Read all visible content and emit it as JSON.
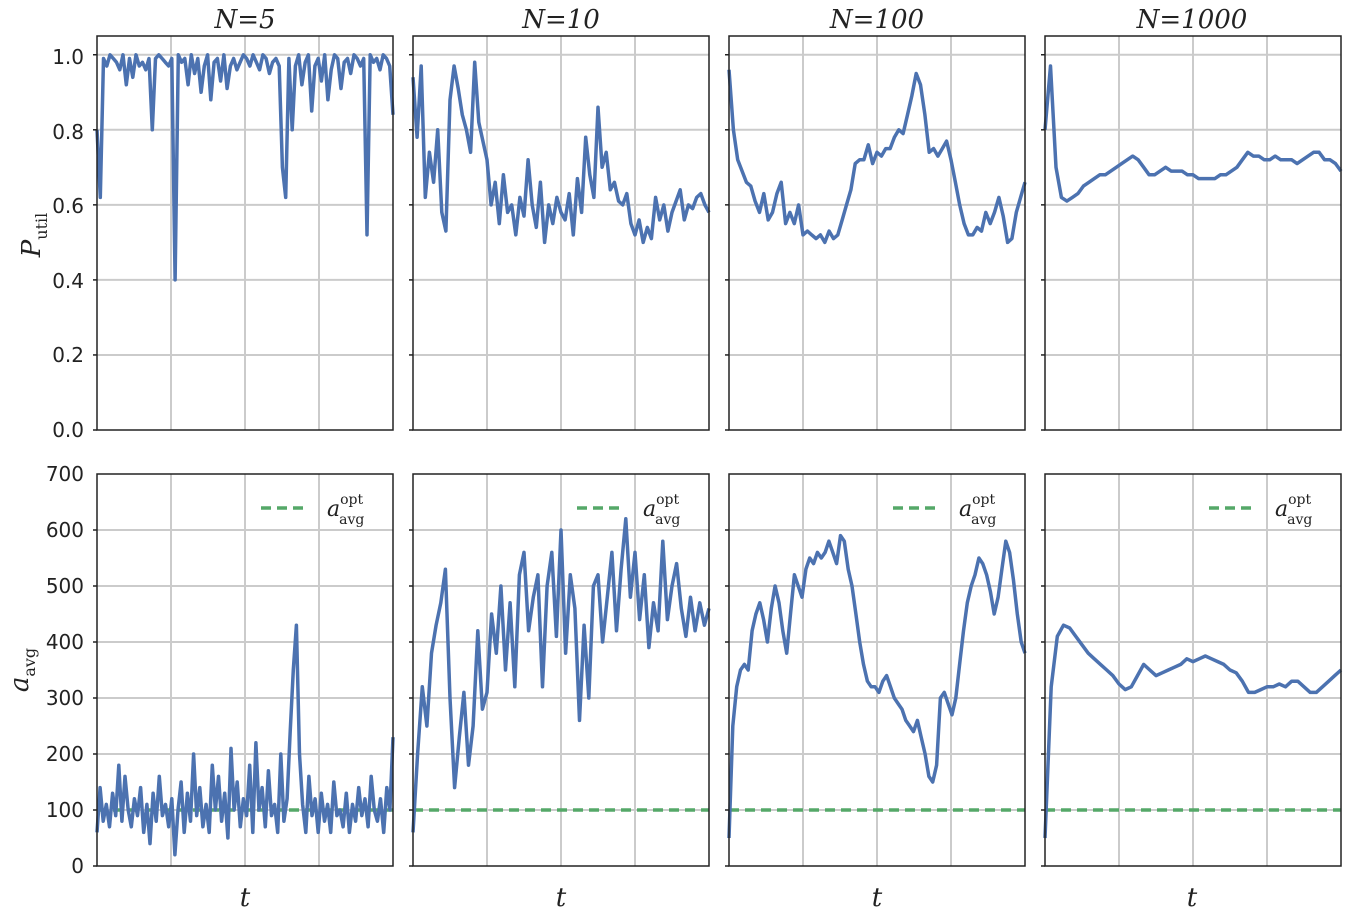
{
  "figure": {
    "colors": {
      "series": "#4c72b0",
      "reference": "#55a868",
      "grid": "#cbcbcb",
      "frame": "#222222"
    }
  },
  "chart_data": [
    {
      "type": "line",
      "panel": "top",
      "title": "N=5",
      "ylabel": "P_util",
      "xlabel": "",
      "ylim": [
        0,
        1.05
      ],
      "yticks": [
        "0.0",
        "0.2",
        "0.4",
        "0.6",
        "0.8",
        "1.0"
      ],
      "grid": true,
      "series": [
        {
          "values": [
            0.8,
            0.62,
            0.99,
            0.97,
            1.0,
            0.99,
            0.98,
            0.96,
            1.0,
            0.92,
            0.99,
            0.94,
            1.0,
            0.97,
            0.98,
            0.96,
            0.99,
            0.8,
            0.99,
            1.0,
            0.99,
            0.98,
            0.97,
            0.99,
            0.4,
            1.0,
            0.98,
            0.99,
            0.92,
            1.0,
            0.95,
            0.99,
            0.9,
            0.97,
            1.0,
            0.88,
            0.98,
            0.99,
            0.93,
            1.0,
            0.91,
            0.97,
            0.99,
            0.96,
            0.98,
            1.0,
            0.99,
            0.97,
            1.0,
            0.98,
            0.96,
            1.0,
            0.99,
            0.95,
            0.98,
            0.99,
            0.97,
            0.7,
            0.62,
            0.99,
            0.8,
            0.97,
            1.0,
            0.92,
            0.98,
            1.0,
            0.85,
            0.97,
            0.99,
            0.93,
            1.0,
            0.88,
            0.96,
            1.0,
            0.99,
            0.91,
            0.98,
            0.99,
            0.95,
            1.0,
            0.99,
            0.97,
            0.99,
            0.52,
            1.0,
            0.98,
            0.99,
            0.96,
            1.0,
            0.99,
            0.97,
            0.84
          ]
        }
      ]
    },
    {
      "type": "line",
      "panel": "top",
      "title": "N=10",
      "ylim": [
        0,
        1.05
      ],
      "grid": true,
      "series": [
        {
          "values": [
            0.94,
            0.78,
            0.97,
            0.62,
            0.74,
            0.66,
            0.8,
            0.58,
            0.53,
            0.88,
            0.97,
            0.91,
            0.84,
            0.8,
            0.74,
            0.98,
            0.82,
            0.77,
            0.72,
            0.6,
            0.66,
            0.55,
            0.68,
            0.58,
            0.6,
            0.52,
            0.62,
            0.57,
            0.72,
            0.6,
            0.54,
            0.66,
            0.5,
            0.6,
            0.55,
            0.62,
            0.58,
            0.56,
            0.63,
            0.52,
            0.67,
            0.58,
            0.78,
            0.68,
            0.62,
            0.86,
            0.7,
            0.74,
            0.64,
            0.66,
            0.61,
            0.6,
            0.63,
            0.55,
            0.52,
            0.56,
            0.5,
            0.54,
            0.51,
            0.62,
            0.56,
            0.6,
            0.53,
            0.58,
            0.61,
            0.64,
            0.56,
            0.6,
            0.59,
            0.62,
            0.63,
            0.6,
            0.58
          ]
        }
      ]
    },
    {
      "type": "line",
      "panel": "top",
      "title": "N=100",
      "ylim": [
        0,
        1.05
      ],
      "grid": true,
      "series": [
        {
          "values": [
            0.96,
            0.8,
            0.72,
            0.69,
            0.66,
            0.65,
            0.61,
            0.58,
            0.63,
            0.56,
            0.58,
            0.63,
            0.66,
            0.55,
            0.58,
            0.55,
            0.6,
            0.52,
            0.53,
            0.52,
            0.51,
            0.52,
            0.5,
            0.53,
            0.51,
            0.52,
            0.56,
            0.6,
            0.64,
            0.71,
            0.72,
            0.72,
            0.76,
            0.71,
            0.74,
            0.73,
            0.75,
            0.75,
            0.78,
            0.8,
            0.79,
            0.84,
            0.89,
            0.95,
            0.92,
            0.84,
            0.74,
            0.75,
            0.73,
            0.75,
            0.77,
            0.72,
            0.66,
            0.6,
            0.55,
            0.52,
            0.52,
            0.54,
            0.53,
            0.58,
            0.55,
            0.58,
            0.62,
            0.57,
            0.5,
            0.51,
            0.58,
            0.62,
            0.66
          ]
        }
      ]
    },
    {
      "type": "line",
      "panel": "top",
      "title": "N=1000",
      "ylim": [
        0,
        1.05
      ],
      "grid": true,
      "series": [
        {
          "values": [
            0.8,
            0.97,
            0.7,
            0.62,
            0.61,
            0.62,
            0.63,
            0.65,
            0.66,
            0.67,
            0.68,
            0.68,
            0.69,
            0.7,
            0.71,
            0.72,
            0.73,
            0.72,
            0.7,
            0.68,
            0.68,
            0.69,
            0.7,
            0.69,
            0.69,
            0.69,
            0.68,
            0.68,
            0.67,
            0.67,
            0.67,
            0.67,
            0.68,
            0.68,
            0.69,
            0.7,
            0.72,
            0.74,
            0.73,
            0.73,
            0.72,
            0.72,
            0.73,
            0.72,
            0.72,
            0.72,
            0.71,
            0.72,
            0.73,
            0.74,
            0.74,
            0.72,
            0.72,
            0.71,
            0.69
          ]
        }
      ]
    },
    {
      "type": "line",
      "panel": "bottom",
      "title": "",
      "ylabel": "a_avg",
      "xlabel": "t",
      "ylim": [
        0,
        700
      ],
      "yticks": [
        "0",
        "100",
        "200",
        "300",
        "400",
        "500",
        "600",
        "700"
      ],
      "grid": true,
      "legend": {
        "label": "a_avg^opt",
        "position": "top-right"
      },
      "reference_line": {
        "name": "a_avg^opt",
        "y": 100
      },
      "series": [
        {
          "values": [
            60,
            140,
            80,
            110,
            70,
            130,
            90,
            180,
            80,
            160,
            100,
            70,
            120,
            90,
            140,
            60,
            110,
            40,
            130,
            80,
            160,
            90,
            110,
            70,
            120,
            20,
            100,
            150,
            60,
            130,
            80,
            200,
            90,
            140,
            70,
            110,
            60,
            180,
            100,
            160,
            80,
            130,
            50,
            210,
            100,
            150,
            70,
            120,
            90,
            180,
            60,
            220,
            100,
            140,
            70,
            170,
            90,
            110,
            60,
            200,
            80,
            120,
            240,
            350,
            430,
            200,
            110,
            60,
            160,
            90,
            120,
            60,
            130,
            80,
            110,
            60,
            150,
            90,
            100,
            70,
            130,
            60,
            110,
            80,
            140,
            90,
            120,
            70,
            160,
            100,
            80,
            120,
            60,
            140,
            100,
            230
          ]
        }
      ]
    },
    {
      "type": "line",
      "panel": "bottom",
      "title": "",
      "xlabel": "t",
      "ylim": [
        0,
        700
      ],
      "grid": true,
      "legend": {
        "label": "a_avg^opt",
        "position": "top-right"
      },
      "reference_line": {
        "name": "a_avg^opt",
        "y": 100
      },
      "series": [
        {
          "values": [
            60,
            200,
            320,
            250,
            380,
            430,
            470,
            530,
            300,
            140,
            230,
            310,
            180,
            250,
            420,
            280,
            310,
            450,
            380,
            500,
            350,
            470,
            320,
            520,
            560,
            420,
            480,
            520,
            320,
            500,
            560,
            410,
            600,
            380,
            520,
            460,
            260,
            430,
            300,
            500,
            520,
            400,
            480,
            560,
            420,
            530,
            620,
            480,
            560,
            440,
            520,
            390,
            470,
            420,
            580,
            440,
            500,
            540,
            460,
            410,
            480,
            420,
            470,
            430,
            460
          ]
        }
      ]
    },
    {
      "type": "line",
      "panel": "bottom",
      "title": "",
      "xlabel": "t",
      "ylim": [
        0,
        700
      ],
      "grid": true,
      "legend": {
        "label": "a_avg^opt",
        "position": "top-right"
      },
      "reference_line": {
        "name": "a_avg^opt",
        "y": 100
      },
      "series": [
        {
          "values": [
            50,
            250,
            320,
            350,
            360,
            350,
            420,
            450,
            470,
            440,
            400,
            460,
            500,
            470,
            420,
            380,
            450,
            520,
            500,
            480,
            530,
            550,
            540,
            560,
            550,
            560,
            580,
            560,
            540,
            590,
            580,
            530,
            500,
            450,
            400,
            360,
            330,
            320,
            320,
            310,
            330,
            340,
            320,
            300,
            290,
            280,
            260,
            250,
            240,
            260,
            230,
            200,
            160,
            150,
            180,
            300,
            310,
            290,
            270,
            300,
            360,
            420,
            470,
            500,
            520,
            550,
            540,
            520,
            490,
            450,
            480,
            530,
            580,
            560,
            510,
            450,
            400,
            380
          ]
        }
      ]
    },
    {
      "type": "line",
      "panel": "bottom",
      "title": "",
      "xlabel": "t",
      "ylim": [
        0,
        700
      ],
      "grid": true,
      "legend": {
        "label": "a_avg^opt",
        "position": "top-right"
      },
      "reference_line": {
        "name": "a_avg^opt",
        "y": 100
      },
      "series": [
        {
          "values": [
            50,
            320,
            410,
            430,
            425,
            410,
            395,
            380,
            370,
            360,
            350,
            340,
            325,
            315,
            320,
            340,
            360,
            350,
            340,
            345,
            350,
            355,
            360,
            370,
            365,
            370,
            375,
            370,
            365,
            360,
            350,
            345,
            330,
            310,
            310,
            315,
            320,
            320,
            325,
            320,
            330,
            330,
            320,
            310,
            310,
            320,
            330,
            340,
            350
          ]
        }
      ]
    }
  ]
}
